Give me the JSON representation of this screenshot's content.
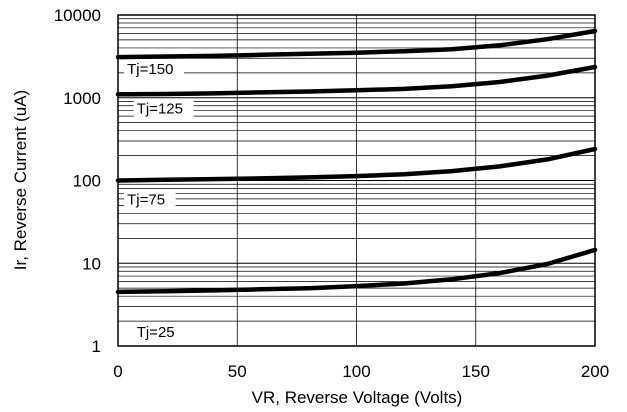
{
  "chart_data": {
    "type": "line",
    "xlabel": "VR, Reverse Voltage (Volts)",
    "ylabel": "Ir, Reverse Current (uA)",
    "xlim": [
      0,
      200
    ],
    "ylim": [
      1,
      10000
    ],
    "yscale": "log",
    "grid": true,
    "legend": "inline labels",
    "x_ticks": [
      "0",
      "50",
      "100",
      "150",
      "200"
    ],
    "y_ticks": [
      "1",
      "10",
      "100",
      "1000",
      "10000"
    ],
    "series": [
      {
        "name": "Tj=150",
        "x": [
          0,
          20,
          40,
          60,
          80,
          100,
          120,
          140,
          160,
          180,
          200
        ],
        "values": [
          3100,
          3150,
          3200,
          3300,
          3400,
          3500,
          3650,
          3850,
          4300,
          5100,
          6400
        ]
      },
      {
        "name": "Tj=125",
        "x": [
          0,
          20,
          40,
          60,
          80,
          100,
          120,
          140,
          160,
          180,
          200
        ],
        "values": [
          1100,
          1110,
          1130,
          1160,
          1190,
          1230,
          1280,
          1380,
          1550,
          1850,
          2350
        ]
      },
      {
        "name": "Tj=75",
        "x": [
          0,
          20,
          40,
          60,
          80,
          100,
          120,
          140,
          160,
          180,
          200
        ],
        "values": [
          100,
          102,
          104,
          106,
          109,
          113,
          119,
          130,
          148,
          180,
          240
        ]
      },
      {
        "name": "Tj=25",
        "x": [
          0,
          20,
          40,
          60,
          80,
          100,
          120,
          140,
          160,
          180,
          200
        ],
        "values": [
          4.5,
          4.6,
          4.7,
          4.85,
          5.0,
          5.3,
          5.7,
          6.4,
          7.6,
          9.8,
          14.5
        ]
      }
    ]
  }
}
